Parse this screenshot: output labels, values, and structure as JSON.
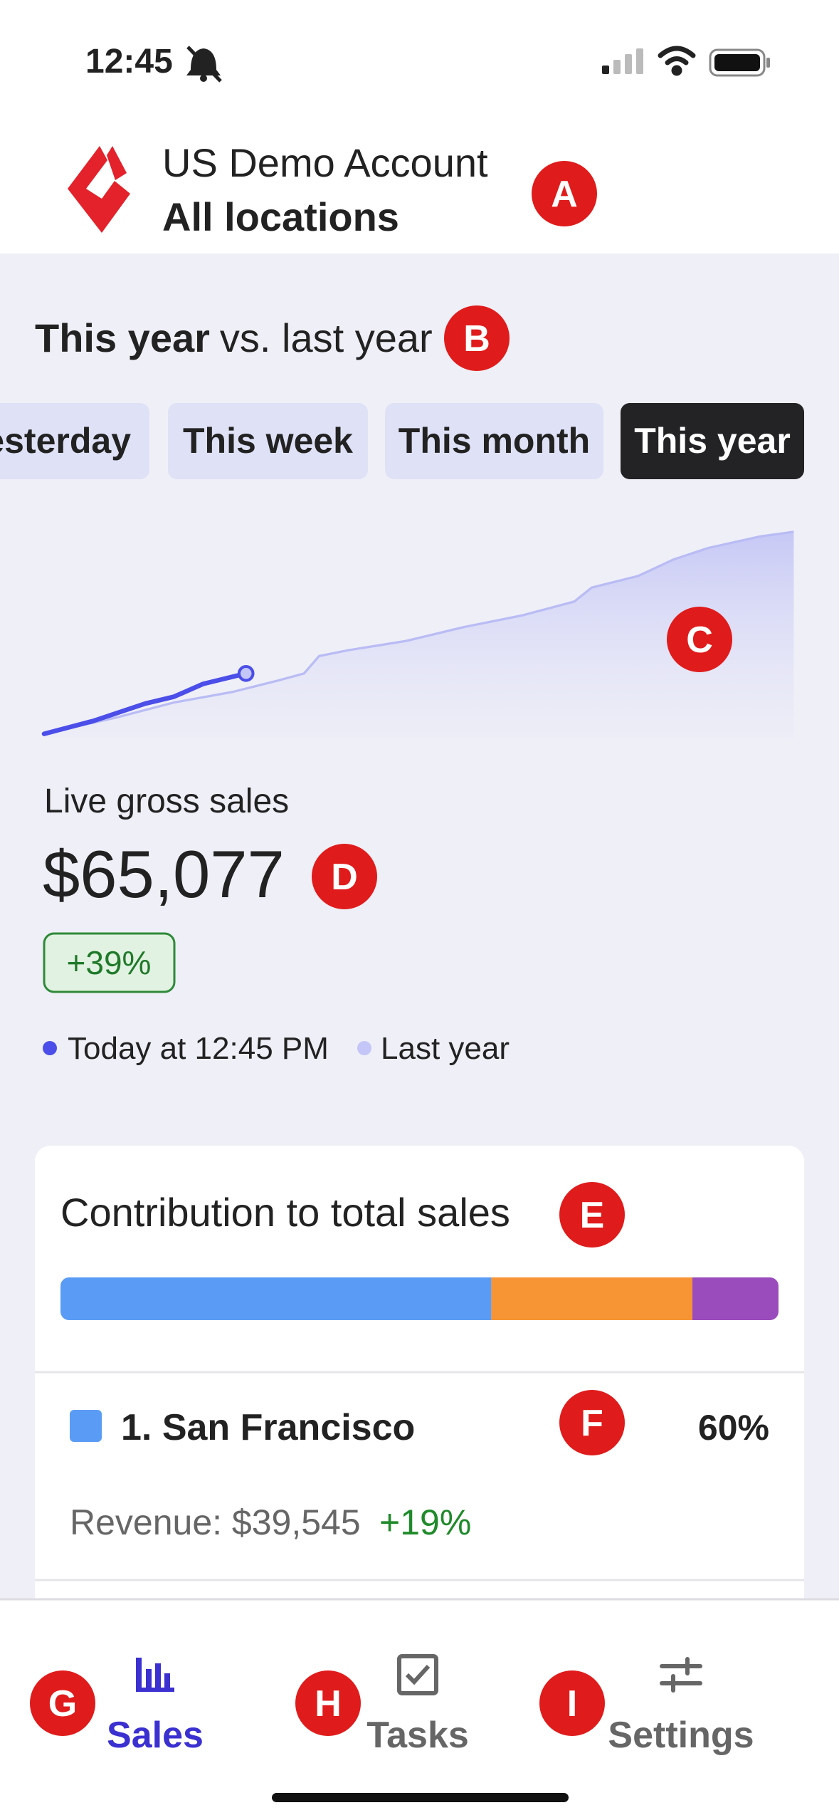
{
  "status_bar": {
    "time": "12:45"
  },
  "header": {
    "account": "US Demo Account",
    "location": "All locations"
  },
  "period": {
    "title_bold": "This year",
    "title_rest": "vs. last year",
    "tabs": [
      "Yesterday",
      "This week",
      "This month",
      "This year"
    ],
    "active_tab": 3
  },
  "sales": {
    "label": "Live gross sales",
    "amount": "$65,077",
    "change": "+39%",
    "legend": [
      {
        "name": "Today at 12:45 PM",
        "color": "#4b4ee8"
      },
      {
        "name": "Last year",
        "color": "#c3c6f6"
      }
    ]
  },
  "contribution": {
    "title": "Contribution to total sales",
    "segments": [
      {
        "value": 60,
        "color": "#5a9cf5"
      },
      {
        "value": 28,
        "color": "#f79433"
      },
      {
        "value": 12,
        "color": "#9a4cbd"
      }
    ],
    "locations": [
      {
        "name": "1. San Francisco",
        "share": "60%",
        "revenue": "Revenue: $39,545",
        "change": "+19%"
      }
    ]
  },
  "nav": {
    "items": [
      "Sales",
      "Tasks",
      "Settings"
    ],
    "active": 0
  },
  "annotations": [
    "A",
    "B",
    "C",
    "D",
    "E",
    "F",
    "G",
    "H",
    "I"
  ]
}
